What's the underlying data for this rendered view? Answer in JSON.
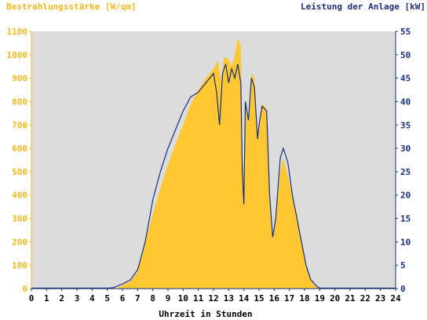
{
  "chart_data": {
    "type": "area",
    "left_axis_title": "Bestrahlungsstärke [W/qm]",
    "right_axis_title": "Leistung der Anlage [kW]",
    "xlabel": "Uhrzeit in Stunden",
    "xlim": [
      0,
      24
    ],
    "x_ticks": [
      "0",
      "1",
      "2",
      "3",
      "4",
      "5",
      "6",
      "7",
      "8",
      "9",
      "10",
      "11",
      "12",
      "13",
      "14",
      "15",
      "16",
      "17",
      "18",
      "19",
      "20",
      "21",
      "22",
      "23",
      "24"
    ],
    "ylim_left": [
      0,
      1100
    ],
    "left_ticks": [
      "0",
      "100",
      "200",
      "300",
      "400",
      "500",
      "600",
      "700",
      "800",
      "900",
      "1000",
      "1100"
    ],
    "ylim_right": [
      0,
      55
    ],
    "right_ticks": [
      "0",
      "5",
      "10",
      "15",
      "20",
      "25",
      "30",
      "35",
      "40",
      "45",
      "50",
      "55"
    ],
    "grid": false,
    "plot_background": "#dcdcdc",
    "series": [
      {
        "name": "Bestrahlungsstärke [W/qm]",
        "axis": "left",
        "style": "filled-area",
        "color": "#ffc832",
        "points": [
          [
            5.6,
            0
          ],
          [
            6.0,
            15
          ],
          [
            6.5,
            30
          ],
          [
            7.0,
            70
          ],
          [
            7.5,
            200
          ],
          [
            8.0,
            320
          ],
          [
            8.5,
            430
          ],
          [
            9.0,
            530
          ],
          [
            9.5,
            620
          ],
          [
            10.0,
            700
          ],
          [
            10.5,
            790
          ],
          [
            11.0,
            850
          ],
          [
            11.5,
            900
          ],
          [
            12.0,
            940
          ],
          [
            12.3,
            975
          ],
          [
            12.5,
            890
          ],
          [
            12.7,
            990
          ],
          [
            13.0,
            980
          ],
          [
            13.2,
            950
          ],
          [
            13.4,
            1000
          ],
          [
            13.6,
            1070
          ],
          [
            13.8,
            1040
          ],
          [
            13.9,
            600
          ],
          [
            14.0,
            450
          ],
          [
            14.1,
            800
          ],
          [
            14.3,
            700
          ],
          [
            14.5,
            920
          ],
          [
            14.7,
            900
          ],
          [
            14.9,
            650
          ],
          [
            15.0,
            700
          ],
          [
            15.2,
            790
          ],
          [
            15.5,
            770
          ],
          [
            15.7,
            400
          ],
          [
            15.9,
            200
          ],
          [
            16.1,
            300
          ],
          [
            16.4,
            500
          ],
          [
            16.6,
            560
          ],
          [
            16.9,
            480
          ],
          [
            17.2,
            400
          ],
          [
            17.5,
            320
          ],
          [
            17.8,
            200
          ],
          [
            18.1,
            100
          ],
          [
            18.4,
            40
          ],
          [
            18.7,
            10
          ],
          [
            19.0,
            0
          ]
        ]
      },
      {
        "name": "Leistung der Anlage [kW]",
        "axis": "right",
        "style": "line",
        "color": "#1a2f7a",
        "points": [
          [
            0.0,
            0.1
          ],
          [
            5.0,
            0.1
          ],
          [
            5.4,
            0.2
          ],
          [
            6.0,
            1
          ],
          [
            6.5,
            1.8
          ],
          [
            7.0,
            4
          ],
          [
            7.5,
            10
          ],
          [
            8.0,
            19
          ],
          [
            8.5,
            25
          ],
          [
            9.0,
            30
          ],
          [
            9.5,
            34
          ],
          [
            10.0,
            38
          ],
          [
            10.5,
            41
          ],
          [
            11.0,
            42
          ],
          [
            11.5,
            44
          ],
          [
            12.0,
            46
          ],
          [
            12.2,
            42
          ],
          [
            12.4,
            35
          ],
          [
            12.6,
            46
          ],
          [
            12.8,
            48
          ],
          [
            13.0,
            44
          ],
          [
            13.2,
            47
          ],
          [
            13.4,
            45
          ],
          [
            13.6,
            48
          ],
          [
            13.8,
            44
          ],
          [
            13.9,
            25
          ],
          [
            14.0,
            18
          ],
          [
            14.1,
            40
          ],
          [
            14.3,
            36
          ],
          [
            14.5,
            45
          ],
          [
            14.7,
            43
          ],
          [
            14.9,
            32
          ],
          [
            15.0,
            35
          ],
          [
            15.2,
            39
          ],
          [
            15.5,
            38
          ],
          [
            15.7,
            20
          ],
          [
            15.9,
            11
          ],
          [
            16.1,
            15
          ],
          [
            16.4,
            28
          ],
          [
            16.6,
            30
          ],
          [
            16.9,
            27
          ],
          [
            17.2,
            20
          ],
          [
            17.5,
            15
          ],
          [
            17.8,
            10
          ],
          [
            18.1,
            5
          ],
          [
            18.4,
            2
          ],
          [
            18.8,
            0.5
          ],
          [
            19.0,
            0.1
          ],
          [
            24.0,
            0.1
          ]
        ]
      }
    ]
  }
}
